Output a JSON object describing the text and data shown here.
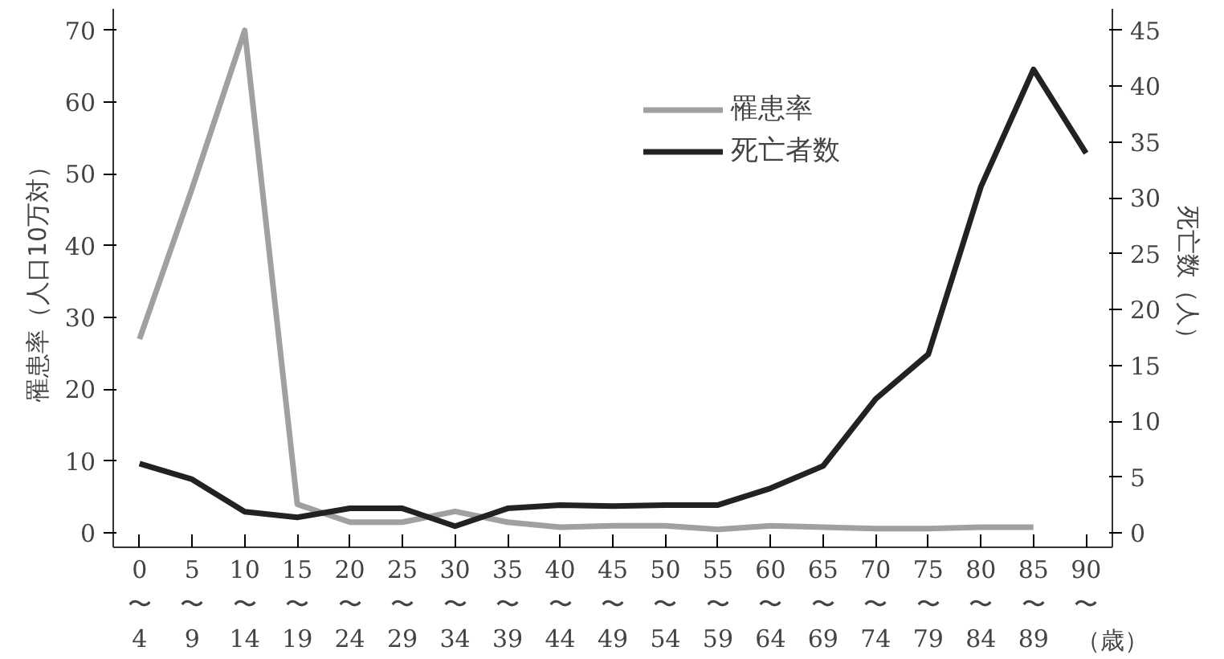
{
  "chart_data": {
    "type": "line",
    "categories": [
      "0\n〜\n4",
      "5\n〜\n9",
      "10\n〜\n14",
      "15\n〜\n19",
      "20\n〜\n24",
      "25\n〜\n29",
      "30\n〜\n34",
      "35\n〜\n39",
      "40\n〜\n44",
      "45\n〜\n49",
      "50\n〜\n54",
      "55\n〜\n59",
      "60\n〜\n64",
      "65\n〜\n69",
      "70\n〜\n74",
      "75\n〜\n79",
      "80\n〜\n84",
      "85\n〜\n89",
      "90\n〜"
    ],
    "xlabel": "（歳）",
    "ylabel": "罹患率（人口10万対）",
    "y2label": "死亡数（人）",
    "ylim": [
      -2,
      73
    ],
    "yticks": [
      0,
      10,
      20,
      30,
      40,
      50,
      60,
      70
    ],
    "y2lim": [
      -1.2857,
      46.9286
    ],
    "y2ticks": [
      0,
      5,
      10,
      15,
      20,
      25,
      30,
      35,
      40,
      45
    ],
    "grid": false,
    "legend": "top right",
    "marker": "none",
    "line_style": "solid",
    "series": [
      {
        "name": "罹患率",
        "color": "#a0a0a0",
        "values": [
          27,
          48,
          70,
          4,
          1.5,
          1.5,
          3,
          1.5,
          0.8,
          1,
          1,
          0.5,
          1,
          0.8,
          0.6,
          0.6,
          0.8,
          0.8,
          null
        ]
      },
      {
        "name": "死亡者数",
        "color": "#222222",
        "axis": "y2",
        "values": [
          6.2,
          4.8,
          1.9,
          1.4,
          2.2,
          2.2,
          0.6,
          2.2,
          2.5,
          2.4,
          2.5,
          2.5,
          4,
          6,
          12,
          16,
          31,
          41.5,
          34
        ]
      }
    ]
  }
}
